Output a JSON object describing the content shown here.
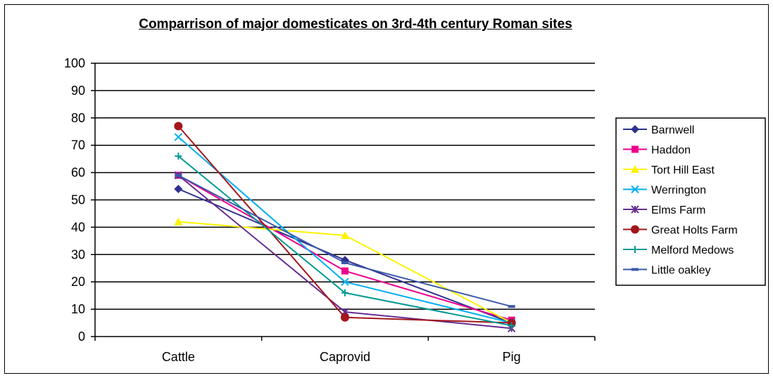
{
  "chart_data": {
    "type": "line",
    "title": "Comparrison of major domesticates on 3rd-4th century Roman sites",
    "xlabel": "",
    "ylabel": "",
    "categories": [
      "Cattle",
      "Caprovid",
      "Pig"
    ],
    "ylim": [
      0,
      100
    ],
    "yticks": [
      0,
      10,
      20,
      30,
      40,
      50,
      60,
      70,
      80,
      90,
      100
    ],
    "grid": true,
    "legend_position": "right",
    "series": [
      {
        "name": "Barnwell",
        "values": [
          54,
          28,
          5
        ],
        "color": "#2e3192",
        "marker": "diamond"
      },
      {
        "name": "Haddon",
        "values": [
          59,
          24,
          6
        ],
        "color": "#ec008c",
        "marker": "square"
      },
      {
        "name": "Tort Hill East",
        "values": [
          42,
          37,
          5
        ],
        "color": "#fff200",
        "marker": "triangle"
      },
      {
        "name": "Werrington",
        "values": [
          73,
          20,
          5
        ],
        "color": "#00aeef",
        "marker": "x"
      },
      {
        "name": "Elms Farm",
        "values": [
          59,
          9,
          3
        ],
        "color": "#662d91",
        "marker": "star"
      },
      {
        "name": "Great Holts Farm",
        "values": [
          77,
          7,
          5
        ],
        "color": "#a3161b",
        "marker": "circle"
      },
      {
        "name": "Melford Medows",
        "values": [
          66,
          16,
          4
        ],
        "color": "#009a93",
        "marker": "plus"
      },
      {
        "name": "Little oakley",
        "values": [
          59,
          27,
          11
        ],
        "color": "#3b58a8",
        "marker": "dash"
      }
    ]
  }
}
